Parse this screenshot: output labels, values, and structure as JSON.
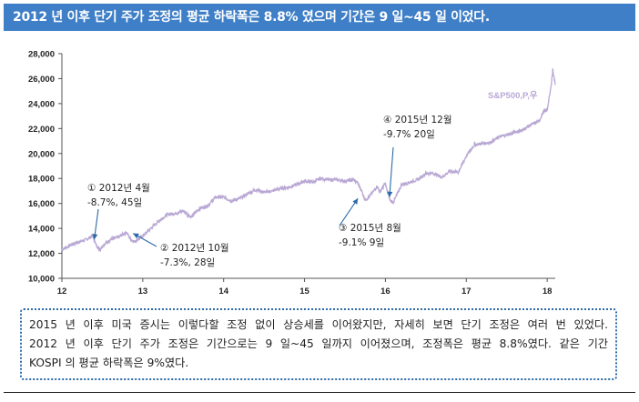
{
  "header": {
    "title": "2012 년 이후 단기 주가 조정의 평균 하락폭은 8.8% 였으며 기간은 9 일~45 일 이었다."
  },
  "chart_data": {
    "type": "line",
    "title": "",
    "series": [
      {
        "name": "S&P500,P,우",
        "color": "#b9a8d4",
        "x": [
          12.0,
          12.15,
          12.3,
          12.38,
          12.42,
          12.47,
          12.5,
          12.6,
          12.7,
          12.8,
          12.85,
          12.9,
          13.0,
          13.1,
          13.2,
          13.3,
          13.4,
          13.5,
          13.6,
          13.7,
          13.8,
          13.9,
          14.0,
          14.1,
          14.2,
          14.3,
          14.4,
          14.5,
          14.6,
          14.7,
          14.8,
          14.9,
          15.0,
          15.1,
          15.2,
          15.3,
          15.4,
          15.5,
          15.6,
          15.65,
          15.7,
          15.75,
          15.8,
          15.9,
          15.93,
          16.0,
          16.02,
          16.06,
          16.1,
          16.2,
          16.3,
          16.4,
          16.5,
          16.6,
          16.7,
          16.8,
          16.9,
          17.0,
          17.1,
          17.2,
          17.3,
          17.4,
          17.5,
          17.6,
          17.7,
          17.8,
          17.9,
          17.95,
          18.0,
          18.04,
          18.07,
          18.1
        ],
        "values": [
          12300,
          12800,
          13100,
          13400,
          12700,
          12300,
          12600,
          13100,
          13300,
          13700,
          13100,
          12950,
          13400,
          14000,
          14600,
          15100,
          15200,
          15400,
          14900,
          15600,
          15800,
          16500,
          16500,
          16200,
          16400,
          16800,
          17100,
          16900,
          17000,
          17200,
          17300,
          17500,
          17800,
          17700,
          18000,
          17900,
          17900,
          17800,
          17900,
          17700,
          17100,
          16300,
          16500,
          17400,
          16900,
          17600,
          17000,
          16200,
          16100,
          17500,
          17700,
          17900,
          18400,
          18400,
          18100,
          18600,
          18500,
          19800,
          20700,
          20800,
          20900,
          21300,
          21500,
          21700,
          21900,
          22300,
          22600,
          23300,
          23500,
          25000,
          26700,
          25500
        ]
      }
    ],
    "xlabel": "",
    "ylabel": "",
    "xlim": [
      12,
      18.1
    ],
    "ylim": [
      10000,
      28000
    ],
    "xticks": [
      12,
      13,
      14,
      15,
      16,
      17,
      18
    ],
    "xtick_labels": [
      "12",
      "13",
      "14",
      "15",
      "16",
      "17",
      "18"
    ],
    "yticks": [
      10000,
      12000,
      14000,
      16000,
      18000,
      20000,
      22000,
      24000,
      26000,
      28000
    ],
    "ytick_labels": [
      "10,000",
      "12,000",
      "14,000",
      "16,000",
      "18,000",
      "20,000",
      "22,000",
      "24,000",
      "26,000",
      "28,000"
    ],
    "grid": false,
    "legend_label": "S&P500,P,우",
    "annotations": [
      {
        "id": "a1",
        "line1": "① 2012년 4월",
        "line2": "-8.7%, 45일",
        "arrow_to": [
          12.4,
          13100
        ]
      },
      {
        "id": "a2",
        "line1": "② 2012년 10월",
        "line2": "-7.3%, 28일",
        "arrow_to": [
          12.88,
          13600
        ]
      },
      {
        "id": "a3",
        "line1": "③ 2015년 8월",
        "line2": "-9.1% 9일",
        "arrow_to": [
          15.66,
          16400
        ]
      },
      {
        "id": "a4",
        "line1": "④ 2015년 12월",
        "line2": "-9.7% 20일",
        "arrow_to": [
          16.05,
          16500
        ]
      }
    ]
  },
  "note": {
    "line1": "2015 년 이후 미국 증시는 이렇다할 조정 없이 상승세를 이어왔지만, 자세히 보면 단기 조정은 여러 번 있었다.",
    "line2": "2012 년 이후 단기 주가 조정은 기간으로는 9 일~45 일까지 이어졌으며, 조정폭은 평균 8.8%였다. 같은 기간",
    "line3": "KOSPI 의 평균 하락폭은 9%였다."
  }
}
